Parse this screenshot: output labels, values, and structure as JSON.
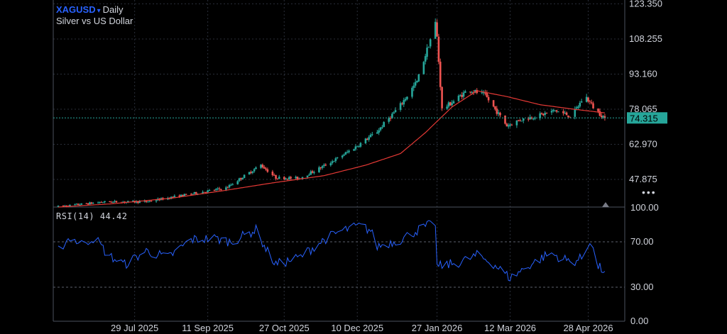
{
  "header": {
    "symbol": "XAGUSD",
    "caret": "▾",
    "timeframe": "Daily",
    "description": "Silver vs US Dollar"
  },
  "more_icon": "more-dots-icon",
  "colors": {
    "up": "#26a69a",
    "down": "#ef5350",
    "ma": "#e53935",
    "rsi": "#2962ff",
    "grid": "#2a2e39",
    "price_line": "#26a69a",
    "price_label_bg": "#26a69a"
  },
  "chart_data": [
    {
      "type": "candlestick",
      "title": "XAGUSD · Daily",
      "subtitle": "Silver vs US Dollar",
      "x_labels": [
        "29 Jul 2025",
        "11 Sep 2025",
        "27 Oct 2025",
        "10 Dec 2025",
        "27 Jan 2026",
        "12 Mar 2026",
        "28 Apr 2026"
      ],
      "y_ticks": [
        "123.350",
        "108.255",
        "93.160",
        "78.065",
        "62.970",
        "47.875"
      ],
      "ylim": [
        36,
        125
      ],
      "last_price": "74.315",
      "last_value": 74.315,
      "grid": true,
      "series": [
        {
          "name": "XAGUSD",
          "kind": "ohlc",
          "anchors_x": [
            "2025-06-13",
            "2025-07-10",
            "2025-08-05",
            "2025-08-28",
            "2025-09-22",
            "2025-10-13",
            "2025-10-22",
            "2025-11-05",
            "2025-11-15",
            "2025-11-28",
            "2025-12-10",
            "2025-12-22",
            "2026-01-05",
            "2026-01-15",
            "2026-01-26",
            "2026-01-27",
            "2026-01-30",
            "2026-02-05",
            "2026-02-15",
            "2026-02-25",
            "2026-03-04",
            "2026-03-10",
            "2026-03-18",
            "2026-03-30",
            "2026-04-08",
            "2026-04-18",
            "2026-04-26",
            "2026-05-02",
            "2026-05-08"
          ],
          "anchors_y": [
            36.2,
            38.2,
            38.3,
            41.2,
            44.2,
            54.1,
            48.6,
            48.4,
            51.8,
            56.9,
            62.3,
            68.5,
            79.8,
            90.0,
            115.0,
            109.0,
            78.0,
            81.0,
            86.5,
            84.0,
            77.0,
            71.0,
            73.5,
            75.5,
            77.5,
            75.0,
            84.0,
            78.0,
            74.3
          ]
        },
        {
          "name": "",
          "kind": "moving_average",
          "anchors_x": [
            "2025-06-13",
            "2025-07-15",
            "2025-08-20",
            "2025-09-20",
            "2025-10-20",
            "2025-11-20",
            "2025-12-15",
            "2026-01-05",
            "2026-01-20",
            "2026-02-05",
            "2026-02-20",
            "2026-03-10",
            "2026-03-30",
            "2026-04-20",
            "2026-05-08"
          ],
          "anchors_y": [
            36.0,
            37.4,
            39.8,
            43.0,
            46.4,
            49.5,
            54.0,
            59.0,
            68.0,
            79.0,
            86.0,
            83.5,
            80.0,
            78.0,
            76.5
          ]
        }
      ]
    },
    {
      "type": "line",
      "title": "RSI(14) 44.42",
      "label": "RSI(14)",
      "last_value_text": "44.42",
      "y_ticks": [
        "100.00",
        "70.00",
        "30.00",
        "0.00"
      ],
      "ylim": [
        0,
        100
      ],
      "bands": [
        70,
        30
      ],
      "series": [
        {
          "name": "RSI(14)",
          "anchors_x": [
            "2025-06-13",
            "2025-06-20",
            "2025-06-27",
            "2025-07-05",
            "2025-07-13",
            "2025-07-23",
            "2025-08-05",
            "2025-08-18",
            "2025-09-01",
            "2025-09-15",
            "2025-09-25",
            "2025-10-05",
            "2025-10-12",
            "2025-10-14",
            "2025-10-22",
            "2025-11-05",
            "2025-11-20",
            "2025-12-01",
            "2025-12-12",
            "2025-12-18",
            "2025-12-22",
            "2026-01-05",
            "2026-01-15",
            "2026-01-26",
            "2026-01-27",
            "2026-02-10",
            "2026-02-20",
            "2026-03-01",
            "2026-03-12",
            "2026-03-22",
            "2026-04-05",
            "2026-04-18",
            "2026-04-25",
            "2026-04-29",
            "2026-05-04",
            "2026-05-08"
          ],
          "anchors_y": [
            63,
            74,
            68,
            74,
            58,
            50,
            62,
            56,
            72,
            73,
            70,
            77,
            82,
            68,
            50,
            56,
            72,
            80,
            84,
            80,
            66,
            72,
            80,
            87,
            48,
            52,
            58,
            52,
            38,
            48,
            60,
            52,
            56,
            72,
            48,
            44
          ]
        }
      ]
    }
  ]
}
